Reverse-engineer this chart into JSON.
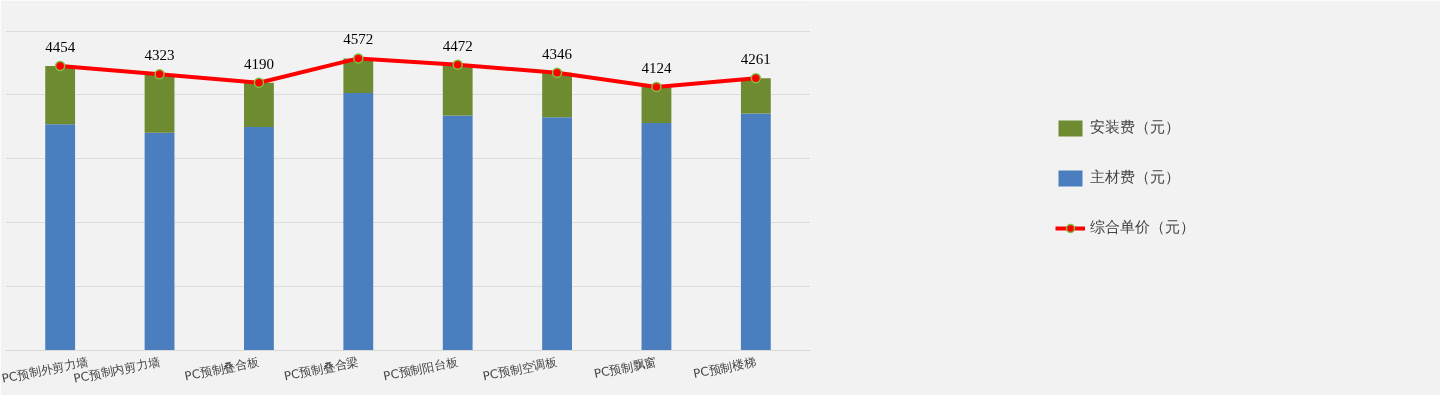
{
  "chart_data": {
    "type": "bar",
    "stacked": true,
    "categories": [
      "PC预制外剪力墙",
      "PC预制内剪力墙",
      "PC预制叠合板",
      "PC预制叠合梁",
      "PC预制阳台板",
      "PC预制空调板",
      "PC预制飘窗",
      "PC预制楼梯"
    ],
    "series": [
      {
        "name": "主材费（元）",
        "color": "#4a7ebf",
        "values": [
          3540,
          3410,
          3500,
          4030,
          3680,
          3650,
          3560,
          3710
        ]
      },
      {
        "name": "安装费（元）",
        "color": "#6e8b32",
        "values": [
          914,
          913,
          690,
          542,
          792,
          696,
          564,
          551
        ]
      },
      {
        "name": "综合单价（元）",
        "type": "line",
        "color": "#ff0000",
        "marker": "circle",
        "values": [
          4454,
          4323,
          4190,
          4572,
          4472,
          4346,
          4124,
          4261
        ],
        "value_labels": [
          "4454",
          "4323",
          "4190",
          "4572",
          "4472",
          "4346",
          "4124",
          "4261"
        ]
      }
    ],
    "ylim": [
      0,
      5400
    ],
    "yticks": [
      {
        "value": 0,
        "label": null
      },
      {
        "value": 1000,
        "label": null
      },
      {
        "value": 2000,
        "label": null
      },
      {
        "value": 3000,
        "label": null
      },
      {
        "value": 4000,
        "label": null
      },
      {
        "value": 5000,
        "label": null
      }
    ],
    "tick_labels": "x",
    "grid": "y",
    "legend": "right"
  }
}
